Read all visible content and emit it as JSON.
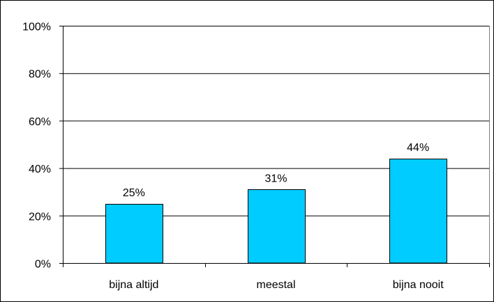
{
  "chart_data": {
    "type": "bar",
    "title": "",
    "xlabel": "",
    "ylabel": "",
    "categories": [
      "bijna altijd",
      "meestal",
      "bijna nooit"
    ],
    "values": [
      25,
      31,
      44
    ],
    "data_labels": [
      "25%",
      "31%",
      "44%"
    ],
    "ylim": [
      0,
      100
    ],
    "y_ticks": [
      0,
      20,
      40,
      60,
      80,
      100
    ],
    "y_tick_labels": [
      "0%",
      "20%",
      "40%",
      "60%",
      "80%",
      "100%"
    ],
    "grid": true,
    "legend": "none",
    "bar_color": "#00ccff",
    "bar_border_color": "#000000"
  }
}
